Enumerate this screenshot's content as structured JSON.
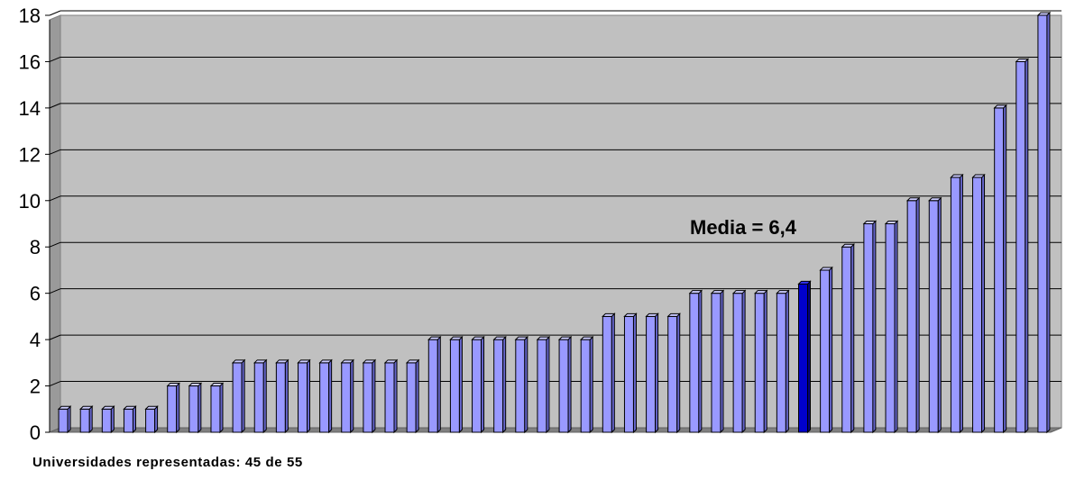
{
  "chart_data": {
    "type": "bar",
    "values": [
      1,
      1,
      1,
      1,
      1,
      2,
      2,
      2,
      3,
      3,
      3,
      3,
      3,
      3,
      3,
      3,
      3,
      4,
      4,
      4,
      4,
      4,
      4,
      4,
      4,
      5,
      5,
      5,
      5,
      6,
      6,
      6,
      6,
      6,
      6.4,
      7,
      8,
      9,
      9,
      10,
      10,
      11,
      11,
      14,
      16,
      18
    ],
    "highlight_index": 34,
    "ylim": [
      0,
      18
    ],
    "yticks": [
      "0",
      "2",
      "4",
      "6",
      "8",
      "10",
      "12",
      "14",
      "16",
      "18"
    ],
    "grid": true,
    "colors": {
      "bar": "#9999ff",
      "highlight": "#0000cc",
      "plot_background": "#c0c0c0"
    },
    "annotation": "Media = 6,4"
  },
  "footnote": "Universidades representadas: 45 de 55"
}
